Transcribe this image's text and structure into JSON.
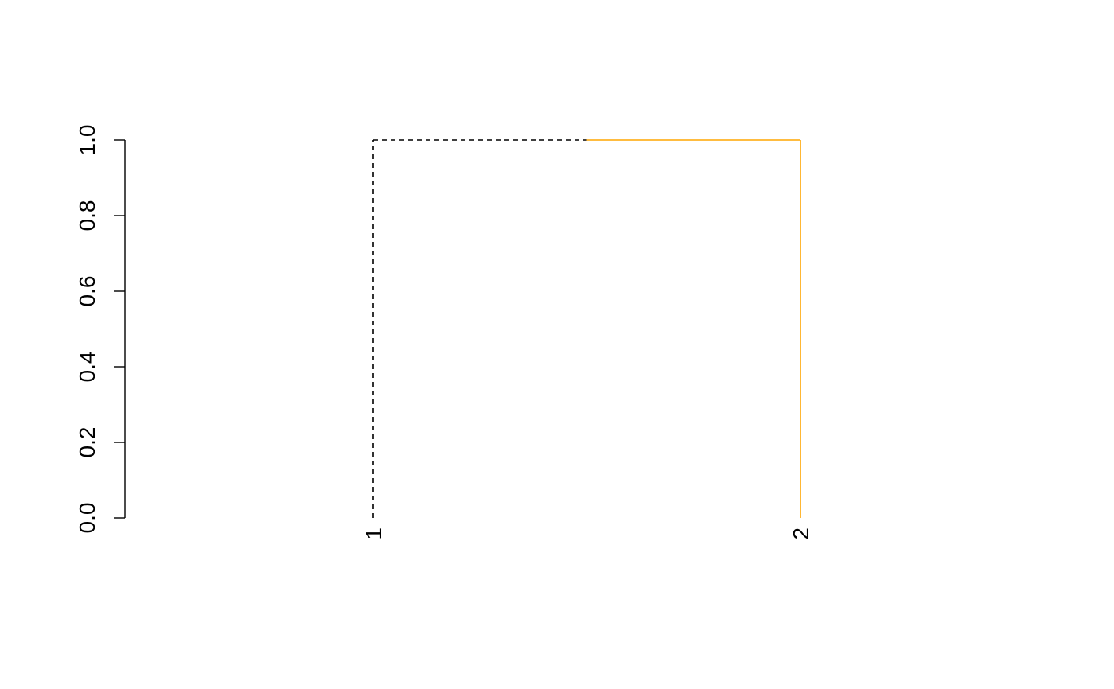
{
  "chart_data": {
    "type": "dendrogram",
    "title": "",
    "xlabel": "",
    "ylabel": "",
    "ylim": [
      0.0,
      1.0
    ],
    "y_ticks": [
      0.0,
      0.2,
      0.4,
      0.6,
      0.8,
      1.0
    ],
    "y_tick_labels": [
      "0.0",
      "0.2",
      "0.4",
      "0.6",
      "0.8",
      "1.0"
    ],
    "leaves": [
      {
        "label": "1",
        "branch_color": "#000000",
        "line_style": "dashed"
      },
      {
        "label": "2",
        "branch_color": "#FFA500",
        "line_style": "solid"
      }
    ],
    "merge_height": 1.0,
    "grid": false
  }
}
